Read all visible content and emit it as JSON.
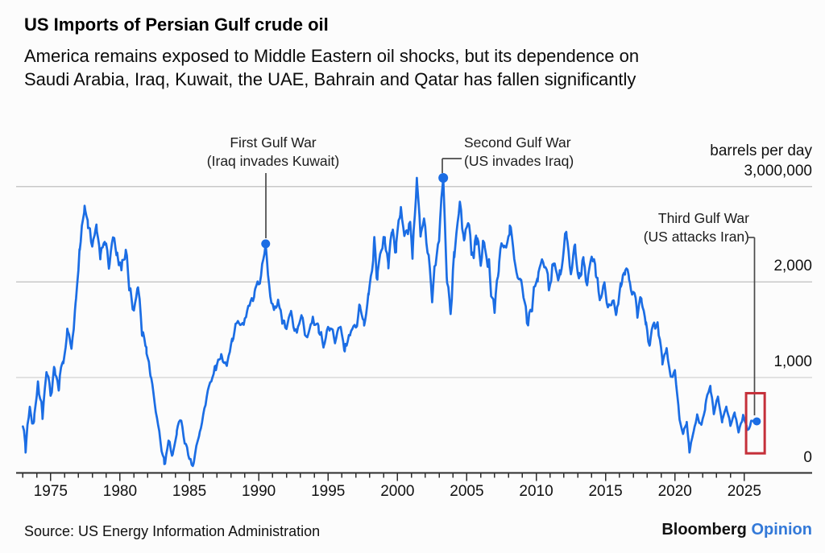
{
  "header": {
    "title": "US Imports of Persian Gulf crude oil",
    "subtitle_line1": "America remains exposed to Middle Eastern oil shocks, but its dependence on",
    "subtitle_line2": "Saudi Arabia, Iraq, Kuwait, the UAE, Bahrain and Qatar has fallen significantly"
  },
  "footer": {
    "source": "Source: US Energy Information Administration",
    "brand": "Bloomberg",
    "brand_suffix": "Opinion"
  },
  "colors": {
    "line_blue": "#1b6de4",
    "highlight_red": "#c5303a",
    "opinion_blue": "#3379d8",
    "grid_gray": "#c9c9c9",
    "axis_dark": "#2d2d2d",
    "connector_gray": "#4a4a4a"
  },
  "chart_data": {
    "type": "line",
    "title": "US Imports of Persian Gulf crude oil",
    "unit_label": "barrels per day",
    "x_axis": {
      "tick_start_year": 1973,
      "tick_end_year": 2025,
      "minor_tick_every_years": 1,
      "labeled_ticks": [
        1975,
        1980,
        1985,
        1990,
        1995,
        2000,
        2005,
        2010,
        2015,
        2020,
        2025
      ]
    },
    "y_axis": {
      "grid": true,
      "range_bpd": [
        0,
        3100000
      ],
      "ticks": [
        {
          "label": "3,000,000",
          "bpd": 3000000
        },
        {
          "label": "2,000",
          "bpd": 2000000
        },
        {
          "label": "1,000",
          "bpd": 1000000
        },
        {
          "label": "0",
          "bpd": 0
        }
      ]
    },
    "series": [
      {
        "name": "US imports of Persian Gulf crude oil (million barrels per day)",
        "points_year_mbpd": [
          [
            1973.0,
            0.46
          ],
          [
            1973.2,
            0.3
          ],
          [
            1973.5,
            0.72
          ],
          [
            1973.8,
            0.5
          ],
          [
            1974.1,
            0.95
          ],
          [
            1974.4,
            0.62
          ],
          [
            1974.7,
            1.05
          ],
          [
            1975.0,
            0.8
          ],
          [
            1975.3,
            1.12
          ],
          [
            1975.6,
            0.92
          ],
          [
            1975.9,
            1.18
          ],
          [
            1976.2,
            1.45
          ],
          [
            1976.5,
            1.32
          ],
          [
            1976.8,
            1.75
          ],
          [
            1977.1,
            2.32
          ],
          [
            1977.45,
            2.84
          ],
          [
            1977.7,
            2.62
          ],
          [
            1978.0,
            2.36
          ],
          [
            1978.3,
            2.56
          ],
          [
            1978.6,
            2.28
          ],
          [
            1978.9,
            2.46
          ],
          [
            1979.2,
            2.18
          ],
          [
            1979.5,
            2.42
          ],
          [
            1979.8,
            2.28
          ],
          [
            1980.1,
            2.12
          ],
          [
            1980.4,
            2.32
          ],
          [
            1980.7,
            1.92
          ],
          [
            1981.0,
            1.72
          ],
          [
            1981.3,
            1.92
          ],
          [
            1981.6,
            1.48
          ],
          [
            1981.9,
            1.3
          ],
          [
            1982.2,
            1.02
          ],
          [
            1982.5,
            0.72
          ],
          [
            1982.8,
            0.42
          ],
          [
            1983.2,
            0.1
          ],
          [
            1983.5,
            0.32
          ],
          [
            1983.8,
            0.16
          ],
          [
            1984.1,
            0.42
          ],
          [
            1984.4,
            0.58
          ],
          [
            1984.7,
            0.32
          ],
          [
            1985.0,
            0.16
          ],
          [
            1985.3,
            0.09
          ],
          [
            1985.7,
            0.38
          ],
          [
            1986.1,
            0.72
          ],
          [
            1986.5,
            0.95
          ],
          [
            1986.9,
            1.12
          ],
          [
            1987.3,
            1.22
          ],
          [
            1987.7,
            1.08
          ],
          [
            1988.1,
            1.42
          ],
          [
            1988.5,
            1.58
          ],
          [
            1988.9,
            1.52
          ],
          [
            1989.3,
            1.76
          ],
          [
            1989.7,
            1.92
          ],
          [
            1990.1,
            2.02
          ],
          [
            1990.5,
            2.4
          ],
          [
            1990.8,
            1.86
          ],
          [
            1991.1,
            1.68
          ],
          [
            1991.4,
            1.84
          ],
          [
            1991.7,
            1.58
          ],
          [
            1992.0,
            1.54
          ],
          [
            1992.3,
            1.68
          ],
          [
            1992.7,
            1.48
          ],
          [
            1993.1,
            1.6
          ],
          [
            1993.5,
            1.44
          ],
          [
            1993.9,
            1.62
          ],
          [
            1994.3,
            1.48
          ],
          [
            1994.7,
            1.36
          ],
          [
            1995.1,
            1.52
          ],
          [
            1995.5,
            1.4
          ],
          [
            1995.9,
            1.52
          ],
          [
            1996.2,
            1.28
          ],
          [
            1996.6,
            1.44
          ],
          [
            1997.0,
            1.55
          ],
          [
            1997.3,
            1.72
          ],
          [
            1997.6,
            1.62
          ],
          [
            1997.9,
            1.85
          ],
          [
            1998.3,
            2.42
          ],
          [
            1998.55,
            2.05
          ],
          [
            1998.8,
            2.35
          ],
          [
            1999.1,
            2.45
          ],
          [
            1999.35,
            2.12
          ],
          [
            1999.6,
            2.55
          ],
          [
            1999.9,
            2.3
          ],
          [
            2000.2,
            2.72
          ],
          [
            2000.5,
            2.45
          ],
          [
            2000.8,
            2.6
          ],
          [
            2001.1,
            2.35
          ],
          [
            2001.4,
            3.05
          ],
          [
            2001.7,
            2.45
          ],
          [
            2002.0,
            2.62
          ],
          [
            2002.25,
            2.3
          ],
          [
            2002.5,
            1.82
          ],
          [
            2002.75,
            2.28
          ],
          [
            2003.0,
            2.55
          ],
          [
            2003.3,
            3.09
          ],
          [
            2003.55,
            2.1
          ],
          [
            2003.8,
            1.6
          ],
          [
            2004.1,
            2.3
          ],
          [
            2004.5,
            2.82
          ],
          [
            2004.8,
            2.4
          ],
          [
            2005.1,
            2.62
          ],
          [
            2005.4,
            2.32
          ],
          [
            2005.7,
            2.52
          ],
          [
            2006.0,
            2.25
          ],
          [
            2006.3,
            2.45
          ],
          [
            2006.6,
            2.12
          ],
          [
            2007.0,
            1.62
          ],
          [
            2007.3,
            2.18
          ],
          [
            2007.7,
            2.42
          ],
          [
            2008.1,
            2.58
          ],
          [
            2008.5,
            2.25
          ],
          [
            2008.9,
            1.95
          ],
          [
            2009.3,
            1.61
          ],
          [
            2009.7,
            1.75
          ],
          [
            2010.1,
            2.05
          ],
          [
            2010.5,
            2.25
          ],
          [
            2010.9,
            1.95
          ],
          [
            2011.3,
            2.22
          ],
          [
            2011.7,
            2.05
          ],
          [
            2012.0,
            2.35
          ],
          [
            2012.2,
            2.52
          ],
          [
            2012.5,
            2.18
          ],
          [
            2012.8,
            2.35
          ],
          [
            2013.1,
            2.05
          ],
          [
            2013.4,
            2.22
          ],
          [
            2013.7,
            1.95
          ],
          [
            2014.0,
            2.25
          ],
          [
            2014.3,
            2.05
          ],
          [
            2014.6,
            1.85
          ],
          [
            2014.9,
            2.0
          ],
          [
            2015.2,
            1.7
          ],
          [
            2015.5,
            1.85
          ],
          [
            2015.8,
            1.72
          ],
          [
            2016.1,
            1.98
          ],
          [
            2016.4,
            2.1
          ],
          [
            2016.7,
            2.05
          ],
          [
            2017.0,
            1.88
          ],
          [
            2017.3,
            1.7
          ],
          [
            2017.6,
            1.82
          ],
          [
            2017.9,
            1.58
          ],
          [
            2018.2,
            1.35
          ],
          [
            2018.5,
            1.62
          ],
          [
            2018.8,
            1.48
          ],
          [
            2019.1,
            1.12
          ],
          [
            2019.4,
            1.32
          ],
          [
            2019.7,
            0.98
          ],
          [
            2020.0,
            1.1
          ],
          [
            2020.3,
            0.62
          ],
          [
            2020.6,
            0.4
          ],
          [
            2020.85,
            0.55
          ],
          [
            2021.05,
            0.19
          ],
          [
            2021.35,
            0.45
          ],
          [
            2021.6,
            0.62
          ],
          [
            2021.9,
            0.5
          ],
          [
            2022.2,
            0.72
          ],
          [
            2022.55,
            0.91
          ],
          [
            2022.8,
            0.62
          ],
          [
            2023.1,
            0.78
          ],
          [
            2023.4,
            0.55
          ],
          [
            2023.7,
            0.68
          ],
          [
            2024.0,
            0.5
          ],
          [
            2024.3,
            0.62
          ],
          [
            2024.6,
            0.44
          ],
          [
            2024.9,
            0.58
          ],
          [
            2025.2,
            0.46
          ],
          [
            2025.5,
            0.52
          ],
          [
            2025.9,
            0.54
          ]
        ]
      }
    ],
    "noise_texture_mbpd": [
      [
        1973,
        0.1
      ],
      [
        1982,
        0.09
      ],
      [
        1983.5,
        0.05
      ],
      [
        1987,
        0.07
      ],
      [
        1990,
        0.08
      ],
      [
        1992,
        0.07
      ],
      [
        1997,
        0.08
      ],
      [
        1999,
        0.16
      ],
      [
        2003,
        0.16
      ],
      [
        2009,
        0.13
      ],
      [
        2012,
        0.12
      ],
      [
        2016,
        0.1
      ],
      [
        2019,
        0.08
      ],
      [
        2020.6,
        0.05
      ],
      [
        2022,
        0.05
      ],
      [
        2026.5,
        0.04
      ]
    ],
    "markers": [
      {
        "year": 1990.5,
        "bpd": 2400000,
        "label_line1": "First Gulf War",
        "label_line2": "(Iraq invades Kuwait)"
      },
      {
        "year": 2003.3,
        "bpd": 3090000,
        "label_line1": "Second Gulf War",
        "label_line2": "(US invades Iraq)"
      },
      {
        "year": 2025.9,
        "bpd": 540000,
        "label_line1": "Third Gulf War",
        "label_line2": "(US attacks Iran)"
      }
    ],
    "highlight_box": {
      "year_start": 2025.13,
      "year_end": 2026.47,
      "top_bpd": 835000,
      "bottom_bpd": 205000
    }
  }
}
